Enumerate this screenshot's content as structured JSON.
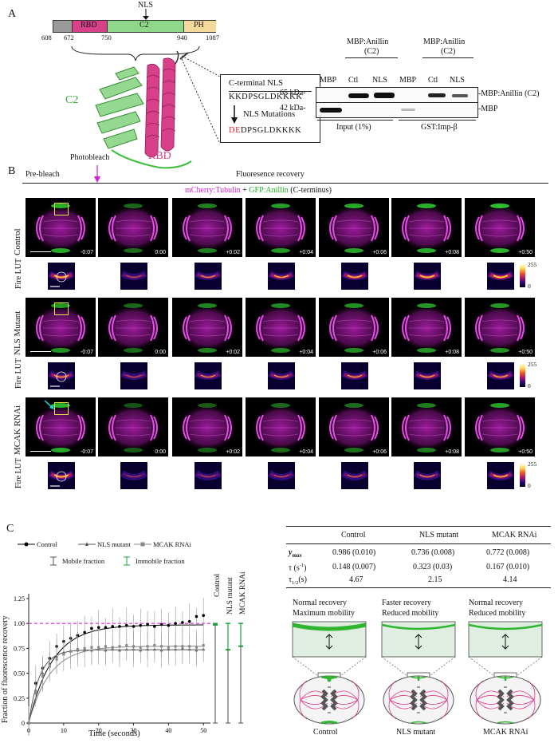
{
  "panel_a": {
    "letter": "A",
    "domain_labels": [
      "RBD",
      "C2",
      "PH"
    ],
    "domain_colors": {
      "grey": "#9a9a9a",
      "rbd": "#d9408a",
      "c2": "#8fd88a",
      "ph": "#f3d99a"
    },
    "nls_label": "NLS",
    "positions": [
      "608",
      "672",
      "750",
      "940",
      "1087"
    ],
    "structure_c2": "C2",
    "structure_rbd": "RBD",
    "nls_box_title": "C-terminal NLS",
    "nls_sequence": "KKDPSGLDKKKK",
    "nls_mutations_label": "NLS Mutations",
    "mutant_prefix": "DE",
    "mutant_rest": "DPSGLDKKKK",
    "blot": {
      "group1_title_l1": "MBP:Anillin",
      "group1_title_l2": "(C2)",
      "group2_title_l1": "MBP:Anillin",
      "group2_title_l2": "(C2)",
      "lanes": [
        "MBP",
        "Ctl",
        "NLS",
        "MBP",
        "Ctl",
        "NLS"
      ],
      "marker_65": "65 kDa-",
      "marker_42": "42 kDa-",
      "band_label_top": "-MBP:Anillin (C2)",
      "band_label_bottom": "-MBP",
      "footer_left": "Input (1%)",
      "footer_right": "GST:Imp-β"
    }
  },
  "panel_b": {
    "letter": "B",
    "photobleach": "Photobleach",
    "prebleach": "Pre-bleach",
    "recovery": "Fluoresence recovery",
    "legend_part1": "mCherry:Tubulin",
    "legend_plus": " + ",
    "legend_part2": "GFP:Anillin",
    "legend_part3": " (C-terminus)",
    "rows": [
      {
        "label": "Control",
        "fire": "Fire LUT",
        "times": [
          "-0:07",
          "0:00",
          "+0:02",
          "+0:04",
          "+0:06",
          "+0:08",
          "+0:50"
        ],
        "intensities": [
          0.9,
          0.35,
          0.55,
          0.75,
          0.85,
          0.9,
          1.0
        ]
      },
      {
        "label": "NLS Mutant",
        "fire": "Fire LUT",
        "times": [
          "-0:07",
          "0:00",
          "+0:02",
          "+0:04",
          "+0:06",
          "+0:08",
          "+0:50"
        ],
        "intensities": [
          0.7,
          0.35,
          0.55,
          0.6,
          0.65,
          0.7,
          0.7
        ]
      },
      {
        "label": "MCAK RNAi",
        "fire": "Fire LUT",
        "times": [
          "-0:07",
          "0:00",
          "+0:02",
          "+0:04",
          "+0:06",
          "+0:08",
          "+0:50"
        ],
        "intensities": [
          0.9,
          0.2,
          0.25,
          0.35,
          0.4,
          0.5,
          0.8
        ]
      }
    ],
    "lut_max": "255",
    "lut_min": "0"
  },
  "panel_c": {
    "letter": "C",
    "legend_control": "Control",
    "legend_nls": "NLS mutant",
    "legend_mcak": "MCAK RNAi",
    "legend_mobile": "Mobile fraction",
    "legend_immobile": "Immobile fraction",
    "colors": {
      "control": "#000000",
      "nls": "#555555",
      "mcak": "#888888",
      "immobile": "#1aa33a",
      "reference": "#e020e0"
    },
    "bar_labels": [
      "Control",
      "NLS mutant",
      "MCAK RNAi"
    ],
    "table": {
      "headers": [
        "Control",
        "NLS mutant",
        "MCAK RNAi"
      ],
      "rows": [
        {
          "label": "y",
          "sub": "max",
          "values": [
            "0.986 (0.010)",
            "0.736 (0.008)",
            "0.772 (0.008)"
          ]
        },
        {
          "label": "τ (s",
          "sup": "-1",
          "tail": ")",
          "values": [
            "0.148 (0.007)",
            "0.323 (0.03)",
            "0.167 (0.010)"
          ]
        },
        {
          "label": "τ",
          "sub": "1/2",
          "tail": "(s)",
          "values": [
            "4.67",
            "2.15",
            "4.14"
          ]
        }
      ]
    },
    "schematics": [
      {
        "l1": "Normal recovery",
        "l2": "Maximum mobility",
        "caption": "Control"
      },
      {
        "l1": "Faster recovery",
        "l2": "Reduced mobility",
        "caption": "NLS mutant"
      },
      {
        "l1": "Normal recovery",
        "l2": "Reduced mobility",
        "caption": "MCAK RNAi"
      }
    ]
  },
  "chart_data": {
    "type": "scatter",
    "xlabel": "Time (seconds)",
    "ylabel": "Fraction of fluorescence recovery",
    "xlim": [
      0,
      52
    ],
    "ylim": [
      0,
      1.25
    ],
    "xticks": [
      "0",
      "10",
      "20",
      "30",
      "40",
      "50"
    ],
    "yticks": [
      "0",
      "0.25",
      "0.50",
      "0.75",
      "1.00",
      "1.25"
    ],
    "reference_line": 1.0,
    "series": [
      {
        "name": "Control",
        "x": [
          0,
          2,
          4,
          6,
          8,
          10,
          12,
          14,
          16,
          18,
          20,
          22,
          24,
          26,
          28,
          30,
          32,
          34,
          36,
          38,
          40,
          42,
          44,
          46,
          48,
          50
        ],
        "y": [
          0.0,
          0.4,
          0.55,
          0.65,
          0.77,
          0.82,
          0.85,
          0.88,
          0.91,
          0.95,
          0.96,
          0.96,
          0.97,
          0.97,
          0.98,
          0.97,
          0.98,
          0.99,
          0.97,
          0.99,
          0.98,
          1.0,
          1.01,
          1.02,
          1.07,
          1.08
        ],
        "fit_ymax": 0.986,
        "fit_tau": 0.148
      },
      {
        "name": "NLS mutant",
        "x": [
          0,
          2,
          4,
          6,
          8,
          10,
          12,
          14,
          16,
          18,
          20,
          22,
          24,
          26,
          28,
          30,
          32,
          34,
          36,
          38,
          40,
          42,
          44,
          46,
          48,
          50
        ],
        "y": [
          0.0,
          0.33,
          0.5,
          0.6,
          0.67,
          0.71,
          0.72,
          0.73,
          0.73,
          0.73,
          0.74,
          0.73,
          0.74,
          0.73,
          0.74,
          0.74,
          0.73,
          0.74,
          0.74,
          0.73,
          0.74,
          0.74,
          0.75,
          0.74,
          0.73,
          0.74
        ],
        "fit_ymax": 0.736,
        "fit_tau": 0.323
      },
      {
        "name": "MCAK RNAi",
        "x": [
          0,
          2,
          4,
          6,
          8,
          10,
          12,
          14,
          16,
          18,
          20,
          22,
          24,
          26,
          28,
          30,
          32,
          34,
          36,
          38,
          40,
          42,
          44,
          46,
          48,
          50
        ],
        "y": [
          0.0,
          0.3,
          0.47,
          0.57,
          0.64,
          0.69,
          0.72,
          0.74,
          0.75,
          0.76,
          0.76,
          0.77,
          0.76,
          0.77,
          0.78,
          0.77,
          0.76,
          0.77,
          0.78,
          0.77,
          0.76,
          0.77,
          0.77,
          0.77,
          0.76,
          0.78
        ],
        "fit_ymax": 0.772,
        "fit_tau": 0.167
      }
    ]
  }
}
